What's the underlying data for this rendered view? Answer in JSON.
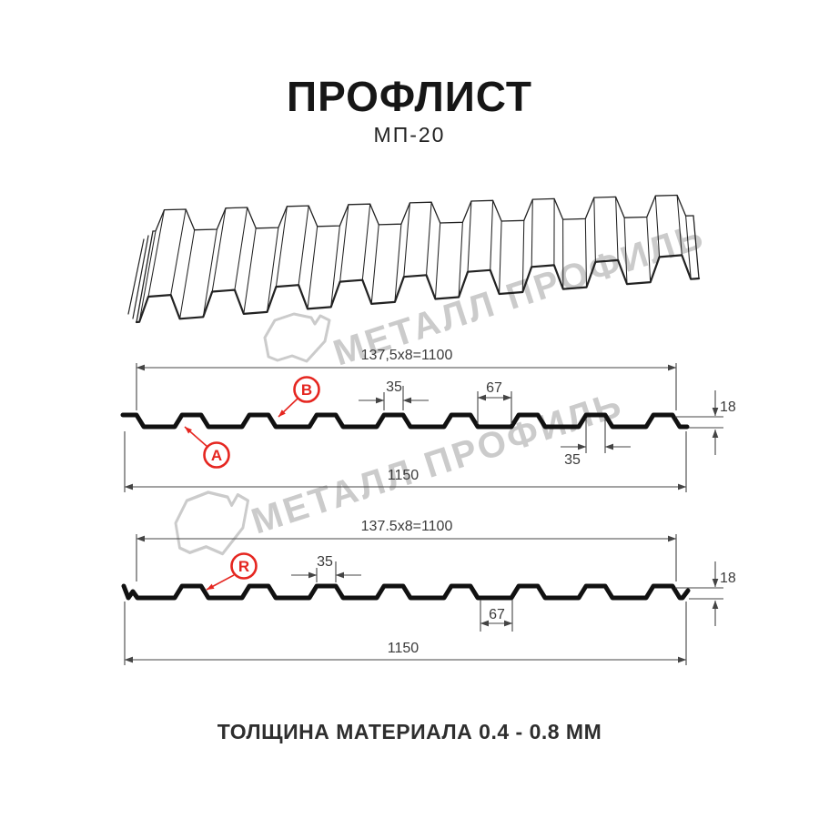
{
  "header": {
    "title": "ПРОФЛИСТ",
    "subtitle": "МП-20"
  },
  "watermark": {
    "brand": "МЕТАЛЛ ПРОФИЛЬ"
  },
  "footer": {
    "thickness_note": "ТОЛЩИНА МАТЕРИАЛА 0.4 - 0.8 ММ"
  },
  "colors": {
    "accent_red": "#e52620",
    "dimension_line": "#444444",
    "profile_line": "#111111",
    "watermark_gray": "#cbcbcb"
  },
  "diagram_top": {
    "working_width_label": "137,5x8=1100",
    "overall_width_label": "1150",
    "rib_top_width_label": "35",
    "valley_width_label": "67",
    "profile_height_label": "18",
    "rib_bottom_width_label": "35",
    "point_a": "A",
    "point_b": "B"
  },
  "diagram_bottom": {
    "working_width_label": "137.5x8=1100",
    "overall_width_label": "1150",
    "rib_top_width_label": "35",
    "valley_width_label": "67",
    "profile_height_label": "18",
    "point_r": "R"
  },
  "dimensions_mm": {
    "overall_width": 1150,
    "working_width": 1100,
    "module_width": 137.5,
    "modules_count": 8,
    "profile_height": 18,
    "rib_top_width": 35,
    "valley_width": 67,
    "thickness_range": "0.4 - 0.8"
  }
}
